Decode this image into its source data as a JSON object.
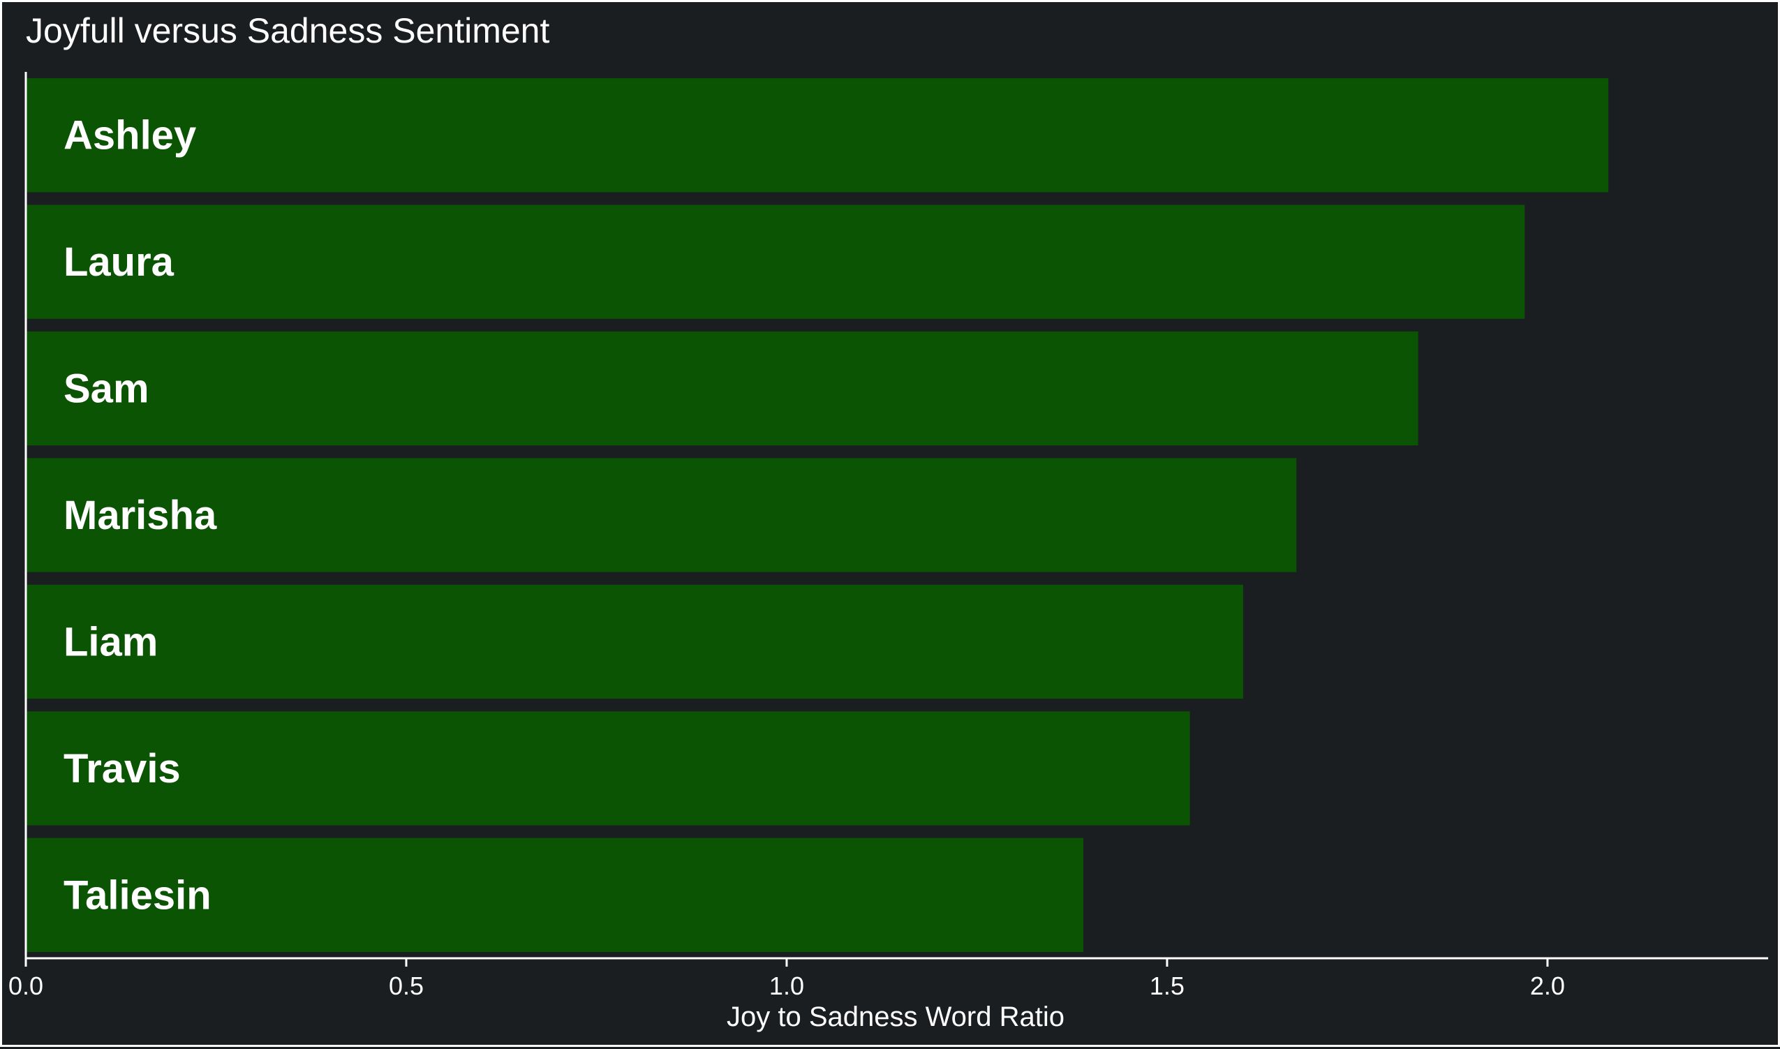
{
  "chart_data": {
    "type": "bar",
    "orientation": "horizontal",
    "title": "Joyfull versus Sadness Sentiment",
    "xlabel": "Joy to Sadness Word Ratio",
    "ylabel": "",
    "categories": [
      "Ashley",
      "Laura",
      "Sam",
      "Marisha",
      "Liam",
      "Travis",
      "Taliesin"
    ],
    "values": [
      2.08,
      1.97,
      1.83,
      1.67,
      1.6,
      1.53,
      1.39
    ],
    "xlim": [
      0,
      2.29
    ],
    "xticks": [
      0.0,
      0.5,
      1.0,
      1.5,
      2.0
    ],
    "xtick_labels": [
      "0.0",
      "0.5",
      "1.0",
      "1.5",
      "2.0"
    ],
    "grid": false,
    "legend": "none",
    "colors": {
      "bar": "#0a5404",
      "background": "#1b1e21",
      "text": "#ffffff",
      "axis": "#ffffff"
    }
  }
}
